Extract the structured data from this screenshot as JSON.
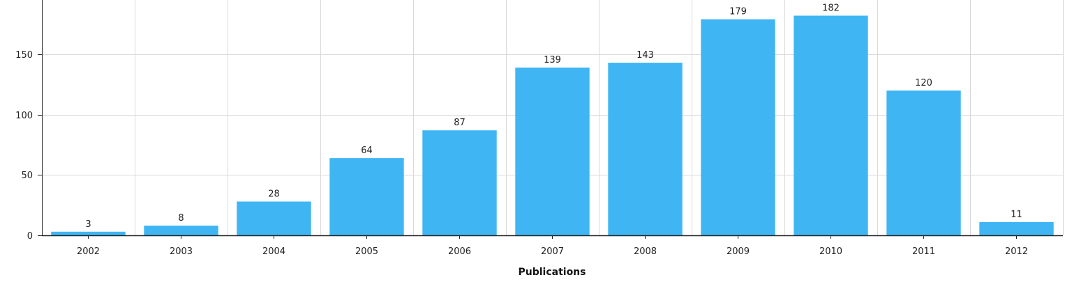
{
  "chart_data": {
    "type": "bar",
    "title": "",
    "xlabel": "Publications",
    "ylabel": "",
    "categories": [
      "2002",
      "2003",
      "2004",
      "2005",
      "2006",
      "2007",
      "2008",
      "2009",
      "2010",
      "2011",
      "2012"
    ],
    "series": [
      {
        "values": [
          3,
          8,
          28,
          64,
          87,
          139,
          143,
          179,
          182,
          120,
          11
        ]
      }
    ],
    "ylim": [
      0,
      195
    ],
    "y_ticks": [
      0,
      50,
      100,
      150
    ],
    "grid": true,
    "legend": "none",
    "data_labels": true
  },
  "colors": {
    "bar": "#3fb6f3",
    "grid": "#d9d9d9",
    "axis": "#222222"
  }
}
